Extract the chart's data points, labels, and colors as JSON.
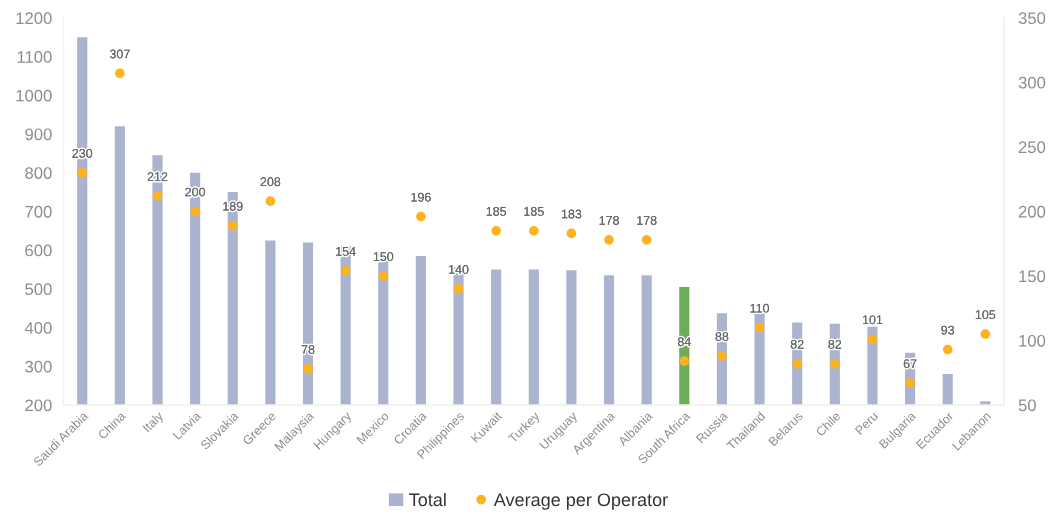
{
  "chart_data": {
    "type": "bar",
    "categories": [
      "Saudi Arabia",
      "China",
      "Italy",
      "Latvia",
      "Slovakia",
      "Greece",
      "Malaysia",
      "Hungary",
      "Mexico",
      "Croatia",
      "Philippines",
      "Kuwait",
      "Turkey",
      "Uruguay",
      "Argentina",
      "Albania",
      "South Africa",
      "Russia",
      "Thailand",
      "Belarus",
      "Chile",
      "Peru",
      "Bulgaria",
      "Ecuador",
      "Lebanon"
    ],
    "series": [
      {
        "name": "Total",
        "color": "#aab4cf",
        "colors": [
          "#aab4cf",
          "#aab4cf",
          "#aab4cf",
          "#aab4cf",
          "#aab4cf",
          "#aab4cf",
          "#aab4cf",
          "#aab4cf",
          "#aab4cf",
          "#aab4cf",
          "#aab4cf",
          "#aab4cf",
          "#aab4cf",
          "#aab4cf",
          "#aab4cf",
          "#aab4cf",
          "#6cad5c",
          "#aab4cf",
          "#aab4cf",
          "#aab4cf",
          "#aab4cf",
          "#aab4cf",
          "#aab4cf",
          "#aab4cf",
          "#aab4cf"
        ],
        "values": [
          1150,
          920,
          845,
          800,
          750,
          625,
          620,
          610,
          595,
          585,
          555,
          550,
          550,
          548,
          535,
          535,
          505,
          437,
          438,
          413,
          410,
          402,
          335,
          280,
          210
        ]
      },
      {
        "name": "Average per Operator",
        "type": "scatter",
        "axis": "y2",
        "color": "#ffb21f",
        "marker": "circle",
        "data_labels": true,
        "values": [
          230,
          307,
          212,
          200,
          189,
          208,
          78,
          154,
          150,
          196,
          140,
          185,
          185,
          183,
          178,
          178,
          84,
          88,
          110,
          82,
          82,
          101,
          67,
          93,
          105
        ]
      }
    ],
    "ylim": [
      200,
      1200
    ],
    "yticks": [
      200,
      300,
      400,
      500,
      600,
      700,
      800,
      900,
      1000,
      1100,
      1200
    ],
    "y2lim": [
      50,
      350
    ],
    "y2ticks": [
      50,
      100,
      150,
      200,
      250,
      300,
      350
    ],
    "grid": false,
    "legend": "bottom"
  }
}
